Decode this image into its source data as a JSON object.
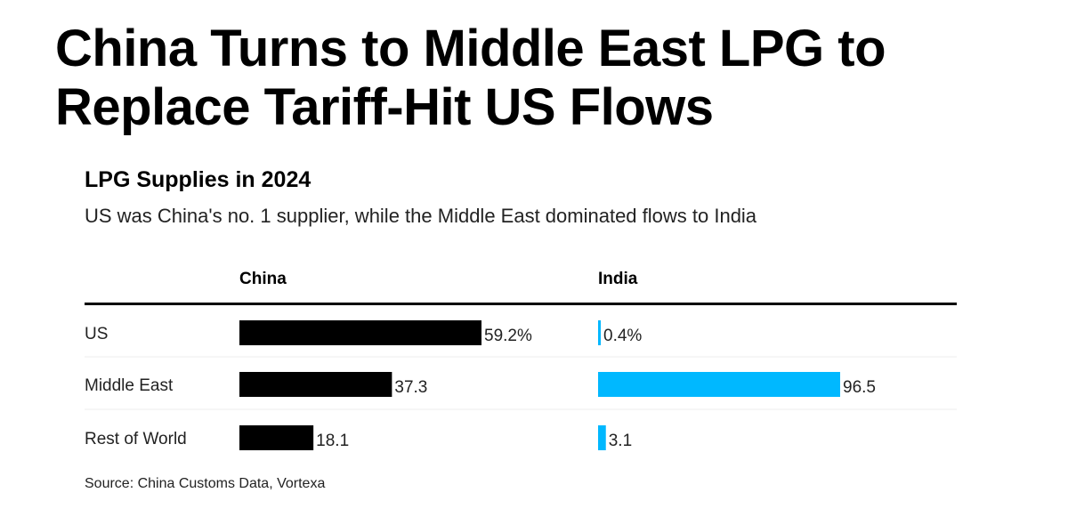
{
  "title": "China Turns to Middle East LPG to Replace Tariff-Hit US Flows",
  "chart_data": {
    "type": "bar",
    "orientation": "horizontal",
    "title": "LPG Supplies in 2024",
    "subtitle": "US was China's no. 1 supplier, while the Middle East dominated flows to India",
    "categories": [
      "US",
      "Middle East",
      "Rest of World"
    ],
    "unit": "%",
    "panels": [
      {
        "name": "China",
        "color": "#000000",
        "values": [
          59.2,
          37.3,
          18.1
        ],
        "labels": [
          "59.2%",
          "37.3",
          "18.1"
        ]
      },
      {
        "name": "India",
        "color": "#00b8ff",
        "values": [
          0.4,
          96.5,
          3.1
        ],
        "labels": [
          "0.4%",
          "96.5",
          "3.1"
        ]
      }
    ],
    "grid": false
  },
  "source": "Source: China Customs Data, Vortexa"
}
